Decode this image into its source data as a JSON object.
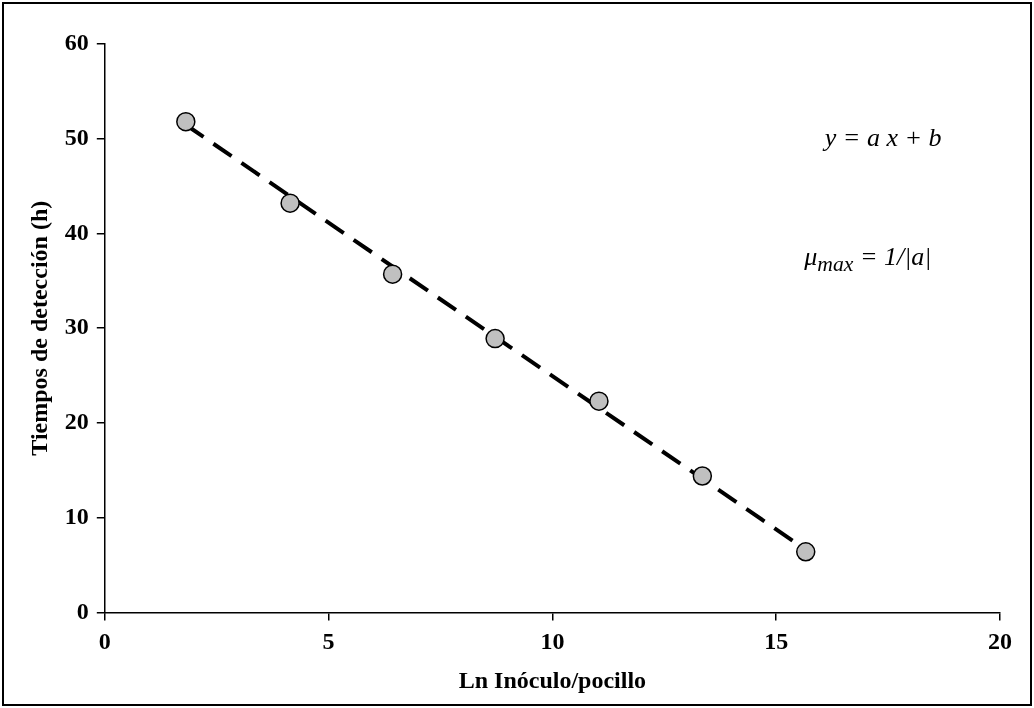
{
  "chart_data": {
    "type": "scatter",
    "xlabel": "Ln Inóculo/pocillo",
    "ylabel": "Tiempos de detección (h)",
    "xlim": [
      0,
      20
    ],
    "xticks": [
      0,
      5,
      10,
      15,
      20
    ],
    "ylim": [
      0,
      60
    ],
    "yticks": [
      0,
      10,
      20,
      30,
      40,
      50,
      60
    ],
    "grid": false,
    "legend": false,
    "marker": "circle",
    "series": [
      {
        "color": "#c0c0c0",
        "x": [
          1.81,
          4.14,
          6.43,
          8.72,
          11.04,
          13.35,
          15.66
        ],
        "values": [
          51.8,
          43.2,
          35.7,
          28.9,
          22.3,
          14.4,
          6.4
        ]
      },
      {
        "type": "line",
        "color": "#000000",
        "line_style": "dashed",
        "marker": "none",
        "x": [
          1.8,
          15.7
        ],
        "values": [
          51.5,
          6.5
        ]
      }
    ],
    "annotations": [
      "y = a x + b",
      "μ$_{max}$ = 1/|a|"
    ]
  }
}
